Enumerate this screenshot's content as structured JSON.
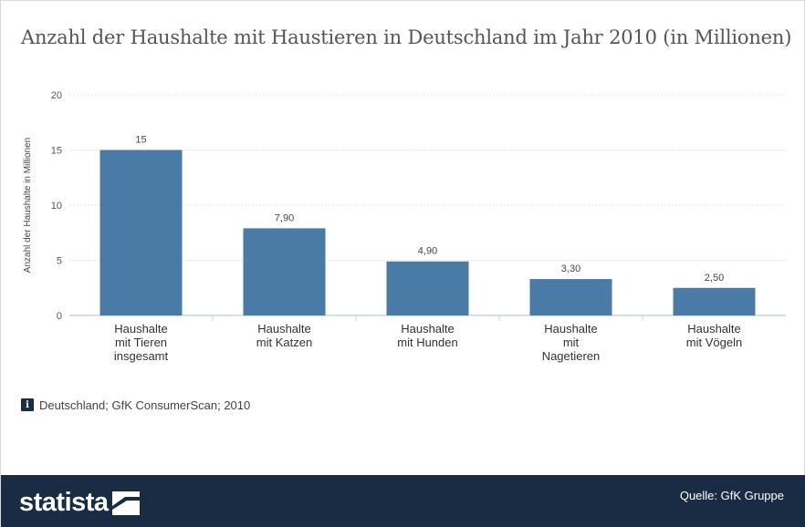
{
  "title": "Anzahl der Haushalte mit Haustieren in Deutschland im Jahr 2010 (in Millionen)",
  "source_note": "Deutschland; GfK ConsumerScan; 2010",
  "info_icon": "info-icon",
  "footer": {
    "logo_text": "statista",
    "logo_icon": "statista-logo-icon",
    "source": "Quelle: GfK Gruppe",
    "bg_color": "#1a2c44"
  },
  "chart_data": {
    "type": "bar",
    "categories": [
      [
        "Haushalte",
        "mit Tieren",
        "insgesamt"
      ],
      [
        "Haushalte",
        "mit Katzen"
      ],
      [
        "Haushalte",
        "mit Hunden"
      ],
      [
        "Haushalte",
        "mit",
        "Nagetieren"
      ],
      [
        "Haushalte",
        "mit Vögeln"
      ]
    ],
    "values": [
      15,
      7.9,
      4.9,
      3.3,
      2.5
    ],
    "data_labels": [
      "15",
      "7,90",
      "4,90",
      "3,30",
      "2,50"
    ],
    "ylabel": "Anzahl der Haushalte in Millionen",
    "ylim": [
      0,
      20
    ],
    "yticks": [
      0,
      5,
      10,
      15,
      20
    ],
    "grid": true,
    "bar_color": "#4a7ba7"
  }
}
